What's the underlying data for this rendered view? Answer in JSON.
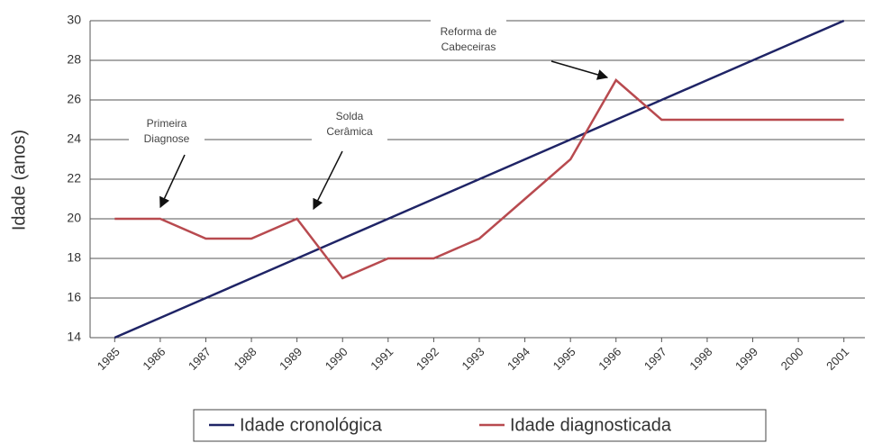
{
  "chart_data": {
    "type": "line",
    "y_label": "Idade (anos)",
    "categories": [
      "1985",
      "1986",
      "1987",
      "1988",
      "1989",
      "1990",
      "1991",
      "1992",
      "1993",
      "1994",
      "1995",
      "1996",
      "1997",
      "1998",
      "1999",
      "2000",
      "2001"
    ],
    "series": [
      {
        "name": "Idade cronológica",
        "color": "#1f2466",
        "values": [
          14,
          15,
          16,
          17,
          18,
          19,
          20,
          21,
          22,
          23,
          24,
          25,
          26,
          27,
          28,
          29,
          30
        ]
      },
      {
        "name": "Idade diagnosticada",
        "color": "#b84a4f",
        "values": [
          20,
          20,
          19,
          19,
          20,
          17,
          18,
          18,
          19,
          21,
          23,
          27,
          25,
          25,
          25,
          25,
          25
        ]
      }
    ],
    "ylim": [
      14,
      30
    ],
    "yticks": [
      14,
      16,
      18,
      20,
      22,
      24,
      26,
      28,
      30
    ],
    "grid": true,
    "legend": "bottom",
    "annotations": [
      {
        "lines": [
          "Primeira",
          "Diagnose"
        ]
      },
      {
        "lines": [
          "Solda",
          "Cerâmica"
        ]
      },
      {
        "lines": [
          "Reforma de",
          "Cabeceiras"
        ]
      }
    ]
  }
}
